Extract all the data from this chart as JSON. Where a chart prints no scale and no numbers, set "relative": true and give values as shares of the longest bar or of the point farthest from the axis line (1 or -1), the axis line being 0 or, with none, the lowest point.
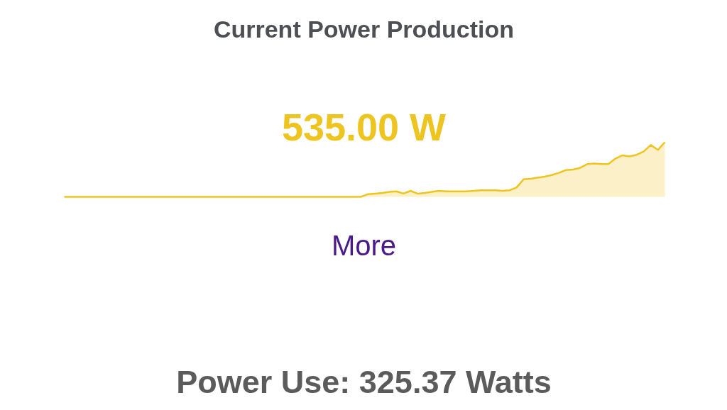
{
  "chart_data": {
    "type": "area",
    "title": "Current Power Production",
    "relative": true,
    "categories": [
      null,
      null,
      null,
      null,
      null,
      null,
      null,
      null,
      null,
      null,
      null,
      null,
      null,
      null,
      null,
      null,
      null,
      null,
      null,
      null,
      null,
      null,
      null,
      null,
      null,
      null,
      null,
      null,
      null,
      null,
      null,
      null,
      null,
      null,
      null,
      null,
      null,
      null,
      null,
      null,
      null,
      null,
      null,
      null,
      null,
      null,
      null,
      null,
      null,
      null,
      null,
      null,
      null,
      null,
      null,
      null,
      null,
      null,
      null,
      null,
      null,
      null,
      null,
      null,
      null,
      null,
      null,
      null,
      null,
      null,
      null,
      null,
      null,
      null,
      null,
      null,
      null,
      null,
      null,
      null,
      null,
      null,
      null,
      null,
      null,
      null
    ],
    "series": [
      {
        "color": "#eec520",
        "values": [
          0,
          0,
          0,
          0,
          0,
          0,
          0,
          0,
          0,
          0,
          0,
          0,
          0,
          0,
          0,
          0,
          0,
          0,
          0,
          0,
          0,
          0,
          0,
          0,
          0,
          0,
          0,
          0,
          0,
          0,
          0,
          0,
          0,
          0,
          0,
          0,
          0,
          0,
          0,
          0,
          0,
          0,
          0,
          0.05,
          0.06,
          0.07,
          0.09,
          0.1,
          0.06,
          0.11,
          0.06,
          0.07,
          0.09,
          0.11,
          0.1,
          0.1,
          0.1,
          0.1,
          0.11,
          0.12,
          0.12,
          0.12,
          0.11,
          0.12,
          0.17,
          0.32,
          0.33,
          0.35,
          0.37,
          0.4,
          0.44,
          0.49,
          0.5,
          0.53,
          0.6,
          0.61,
          0.6,
          0.6,
          0.7,
          0.76,
          0.74,
          0.77,
          0.83,
          0.95,
          0.86,
          1.0
        ]
      }
    ],
    "annotations": [
      "535.00 W",
      "More",
      "Power Use: 325.37 Watts"
    ],
    "grid": false
  }
}
